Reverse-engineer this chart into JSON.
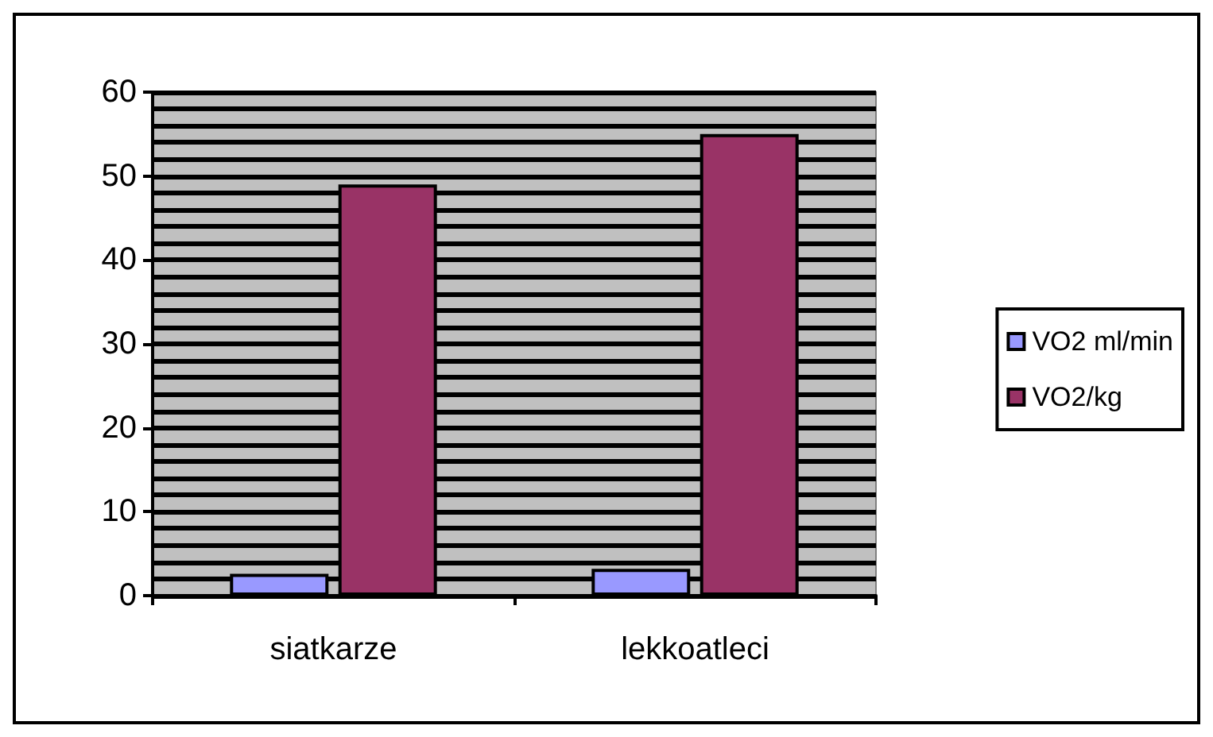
{
  "chart_data": {
    "type": "bar",
    "categories": [
      "siatkarze",
      "lekkoatleci"
    ],
    "series": [
      {
        "name": "VO2 ml/min",
        "color": "#9999ff",
        "values": [
          2.6,
          3.2
        ]
      },
      {
        "name": "VO2/kg",
        "color": "#993366",
        "values": [
          49,
          55
        ]
      }
    ],
    "ylim": [
      0,
      60
    ],
    "yticks": [
      0,
      10,
      20,
      30,
      40,
      50,
      60
    ],
    "grid": true,
    "legend": "right"
  }
}
